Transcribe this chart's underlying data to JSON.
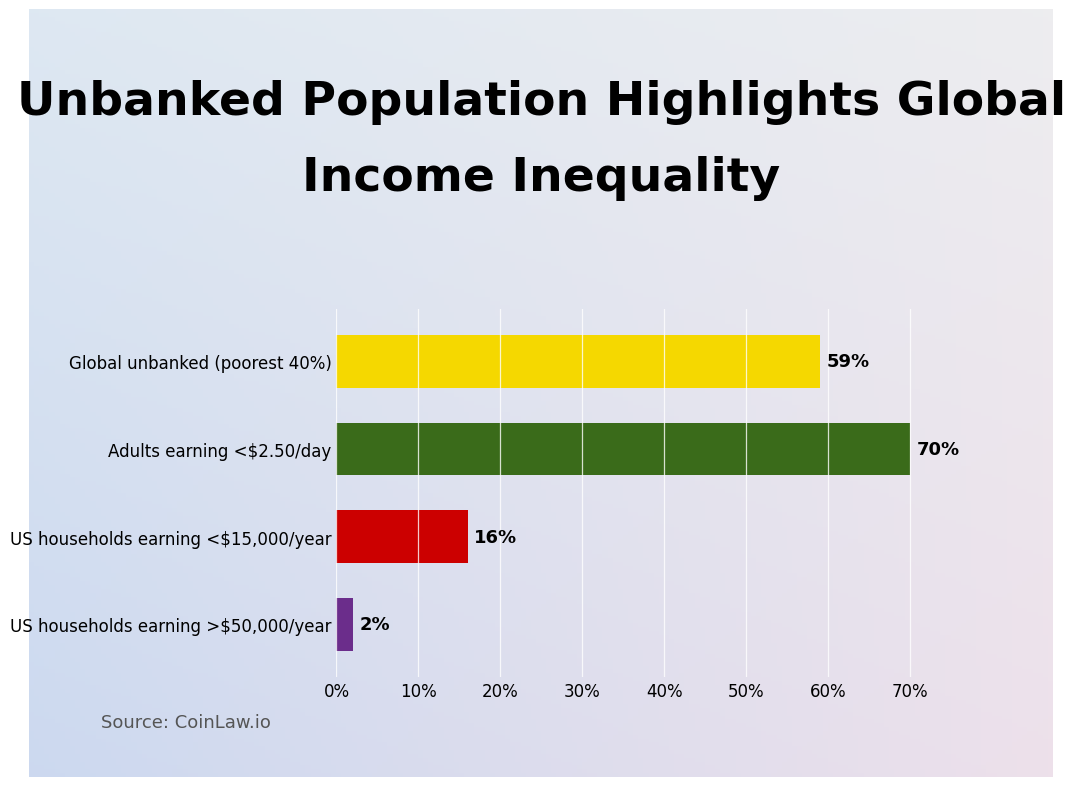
{
  "title_line1": "Unbanked Population Highlights Global",
  "title_line2": "Income Inequality",
  "categories": [
    "Global unbanked (poorest 40%)",
    "Adults earning <$2.50/day",
    "US households earning <$15,000/year",
    "US households earning >$50,000/year"
  ],
  "values": [
    59,
    70,
    16,
    2
  ],
  "bar_colors": [
    "#F5D800",
    "#3A6B1A",
    "#CC0000",
    "#6B2D8B"
  ],
  "value_labels": [
    "59%",
    "70%",
    "16%",
    "2%"
  ],
  "xlim": [
    0,
    75
  ],
  "xticks": [
    0,
    10,
    20,
    30,
    40,
    50,
    60,
    70
  ],
  "xticklabels": [
    "0%",
    "10%",
    "20%",
    "30%",
    "40%",
    "50%",
    "60%",
    "70%"
  ],
  "source": "Source: CoinLaw.io",
  "title_fontsize": 34,
  "label_fontsize": 12,
  "value_fontsize": 13,
  "tick_fontsize": 12,
  "source_fontsize": 13,
  "bar_height": 0.6,
  "bg_tl": [
    0.87,
    0.91,
    0.95
  ],
  "bg_tr": [
    0.93,
    0.93,
    0.94
  ],
  "bg_bl": [
    0.8,
    0.85,
    0.94
  ],
  "bg_br": [
    0.93,
    0.88,
    0.92
  ]
}
